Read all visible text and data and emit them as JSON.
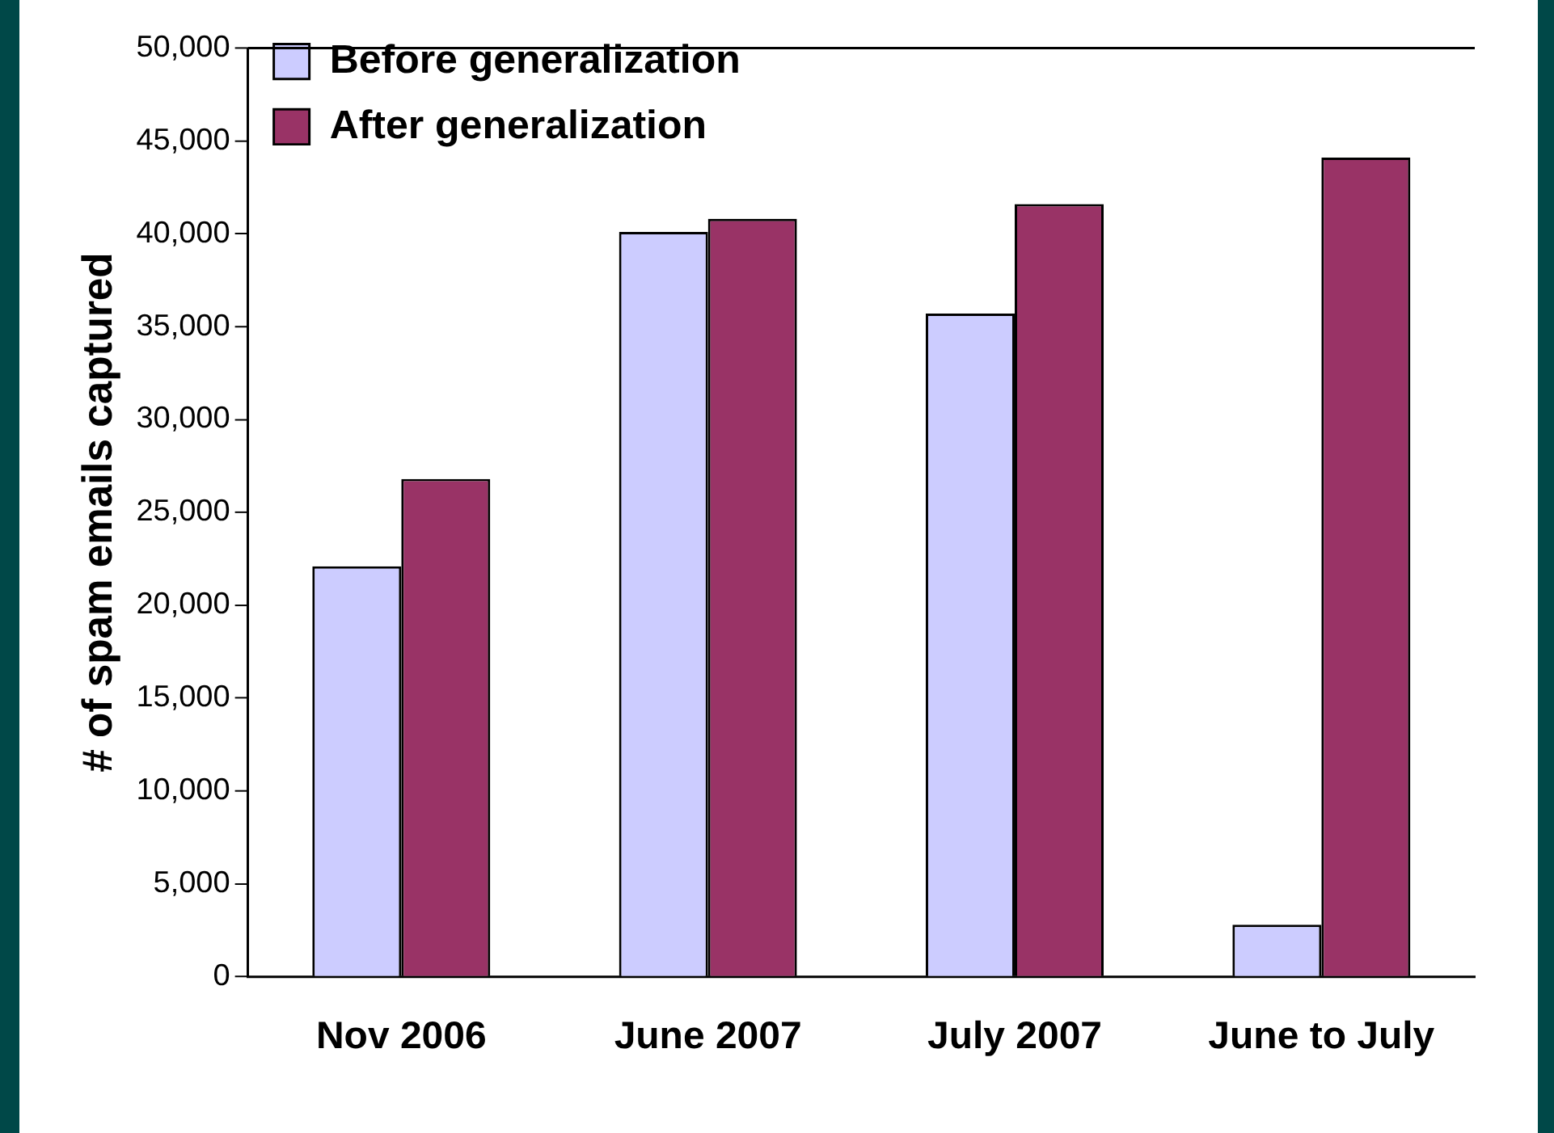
{
  "chart_data": {
    "type": "bar",
    "ylabel": "# of spam emails captured",
    "categories": [
      "Nov 2006",
      "June 2007",
      "July 2007",
      "June to July"
    ],
    "series": [
      {
        "name": "Before generalization",
        "color": "#ccccff",
        "values": [
          22100,
          40100,
          35700,
          2800
        ]
      },
      {
        "name": "After generalization",
        "color": "#993366",
        "values": [
          26800,
          40800,
          41600,
          44100
        ]
      }
    ],
    "ylim": [
      0,
      50000
    ],
    "yticks": [
      {
        "value": 0,
        "label": "0"
      },
      {
        "value": 5000,
        "label": "5,000"
      },
      {
        "value": 10000,
        "label": "10,000"
      },
      {
        "value": 15000,
        "label": "15,000"
      },
      {
        "value": 20000,
        "label": "20,000"
      },
      {
        "value": 25000,
        "label": "25,000"
      },
      {
        "value": 30000,
        "label": "30,000"
      },
      {
        "value": 35000,
        "label": "35,000"
      },
      {
        "value": 40000,
        "label": "40,000"
      },
      {
        "value": 45000,
        "label": "45,000"
      },
      {
        "value": 50000,
        "label": "50,000"
      }
    ],
    "grid": false,
    "legend": "top left"
  }
}
